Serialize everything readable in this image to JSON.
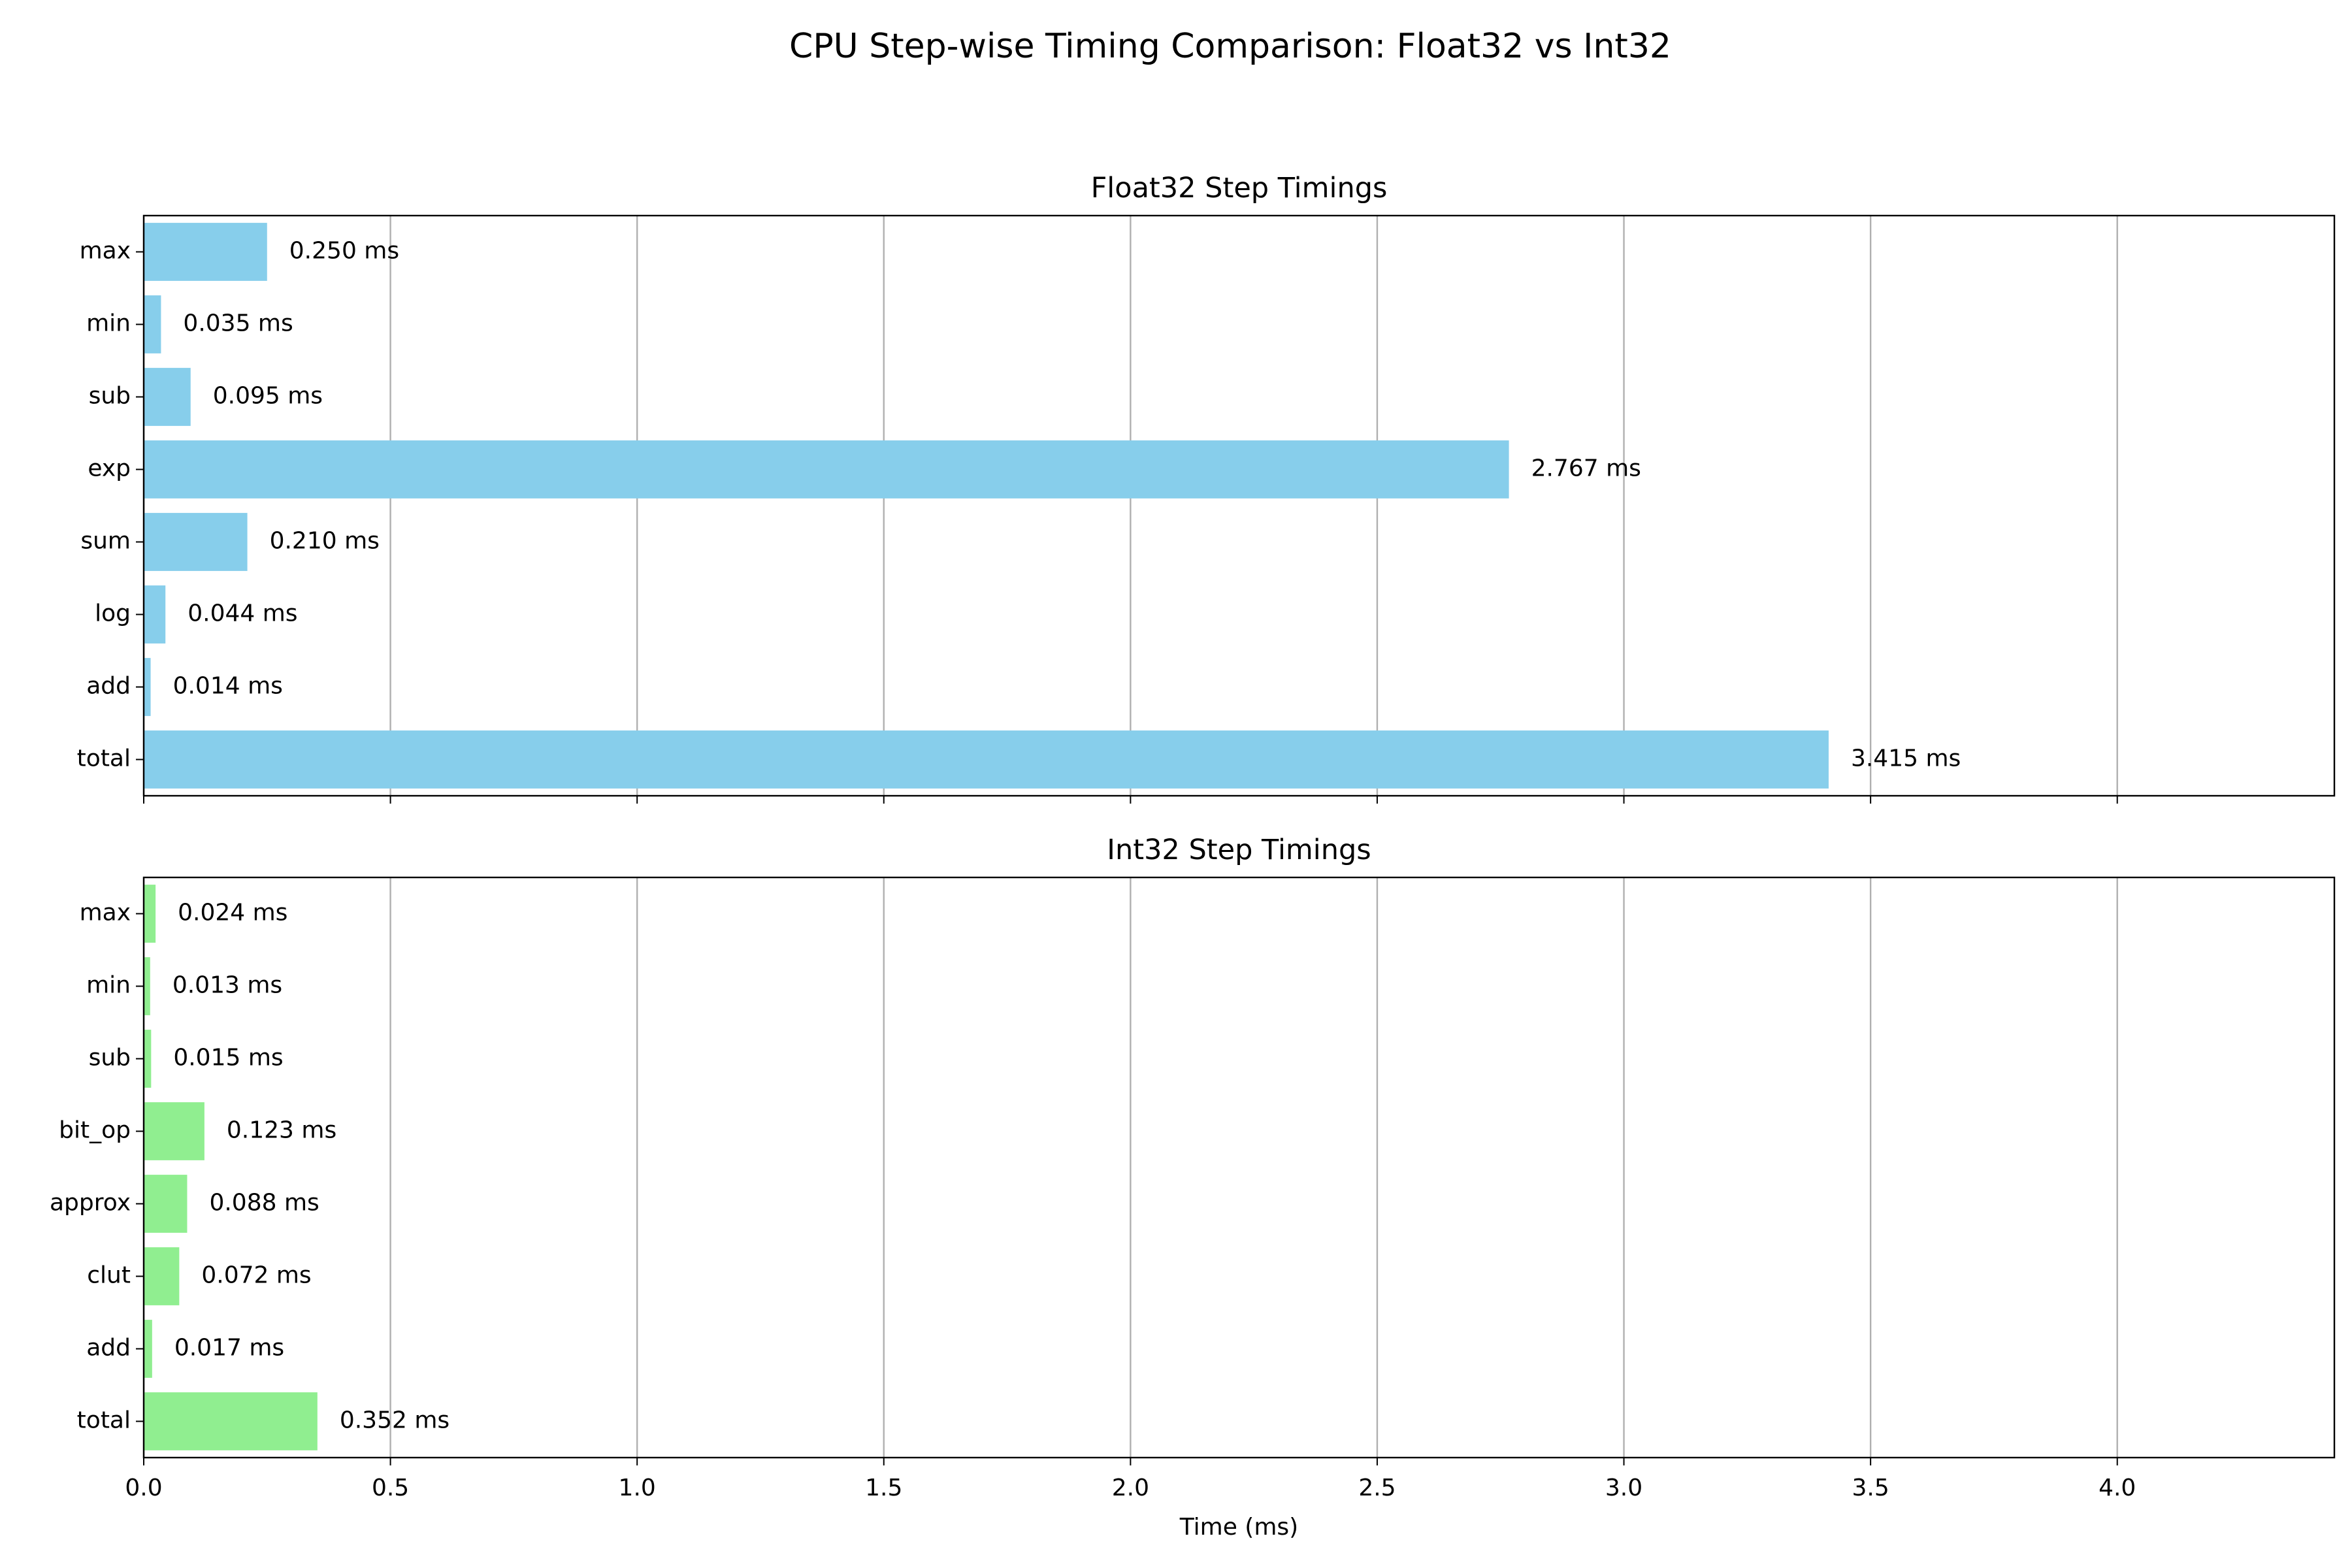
{
  "figure": {
    "title": "CPU Step-wise Timing Comparison: Float32 vs Int32"
  },
  "chart_data": [
    {
      "type": "bar",
      "orientation": "horizontal",
      "title": "Float32 Step Timings",
      "xlabel": "",
      "ylabel": "",
      "categories": [
        "max",
        "min",
        "sub",
        "exp",
        "sum",
        "log",
        "add",
        "total"
      ],
      "values": [
        0.25,
        0.035,
        0.095,
        2.767,
        0.21,
        0.044,
        0.014,
        3.415
      ],
      "value_labels": [
        "0.250 ms",
        "0.035 ms",
        "0.095 ms",
        "2.767 ms",
        "0.210 ms",
        "0.044 ms",
        "0.014 ms",
        "3.415 ms"
      ],
      "color": "#87ceeb",
      "xlim": [
        0,
        4.44
      ],
      "x_ticks": [
        0.0,
        0.5,
        1.0,
        1.5,
        2.0,
        2.5,
        3.0,
        3.5,
        4.0
      ],
      "x_tick_labels_shown": false,
      "grid": "x"
    },
    {
      "type": "bar",
      "orientation": "horizontal",
      "title": "Int32 Step Timings",
      "xlabel": "Time (ms)",
      "ylabel": "",
      "categories": [
        "max",
        "min",
        "sub",
        "bit_op",
        "approx",
        "clut",
        "add",
        "total"
      ],
      "values": [
        0.024,
        0.013,
        0.015,
        0.123,
        0.088,
        0.072,
        0.017,
        0.352
      ],
      "value_labels": [
        "0.024 ms",
        "0.013 ms",
        "0.015 ms",
        "0.123 ms",
        "0.088 ms",
        "0.072 ms",
        "0.017 ms",
        "0.352 ms"
      ],
      "color": "#90ee90",
      "xlim": [
        0,
        4.44
      ],
      "x_ticks": [
        0.0,
        0.5,
        1.0,
        1.5,
        2.0,
        2.5,
        3.0,
        3.5,
        4.0
      ],
      "x_tick_labels": [
        "0.0",
        "0.5",
        "1.0",
        "1.5",
        "2.0",
        "2.5",
        "3.0",
        "3.5",
        "4.0"
      ],
      "x_tick_labels_shown": true,
      "grid": "x"
    }
  ]
}
